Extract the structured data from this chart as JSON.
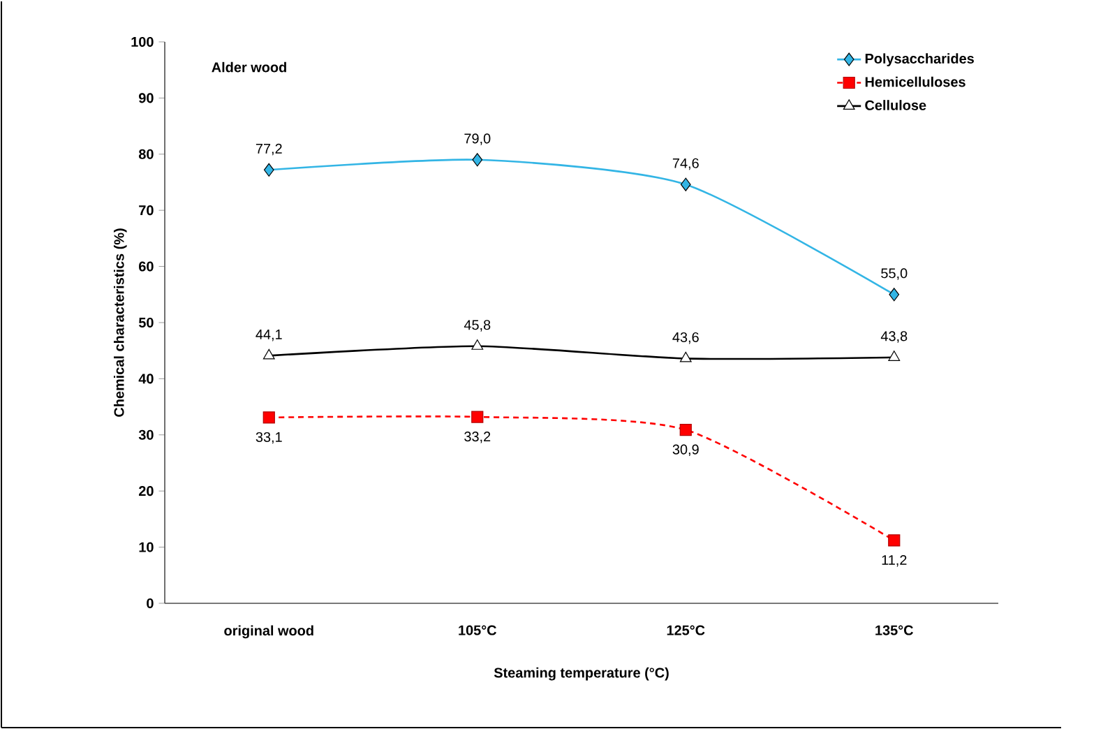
{
  "chart_data": {
    "type": "line",
    "xlabel": "Steaming temperature (°C)",
    "ylabel": "Chemical characteristics  (%)",
    "categories": [
      "original wood",
      "105°C",
      "125°C",
      "135°C"
    ],
    "ylim": [
      0,
      100
    ],
    "yticks": [
      0,
      10,
      20,
      30,
      40,
      50,
      60,
      70,
      80,
      90,
      100
    ],
    "grid": false,
    "legend": "top right",
    "annotations": [
      "Alder wood"
    ],
    "series": [
      {
        "name": "Polysaccharides",
        "color": "#33b5e5",
        "marker": "diamond",
        "line_style": "solid",
        "values": [
          77.2,
          79.0,
          74.6,
          55.0
        ],
        "value_labels": [
          "77,2",
          "79,0",
          "74,6",
          "55,0"
        ]
      },
      {
        "name": "Hemicelluloses",
        "color": "#ff0000",
        "marker": "square",
        "line_style": "dashed",
        "values": [
          33.1,
          33.2,
          30.9,
          11.2
        ],
        "value_labels": [
          "33,1",
          "33,2",
          "30,9",
          "11,2"
        ]
      },
      {
        "name": "Cellulose",
        "color": "#000000",
        "marker": "triangle",
        "line_style": "solid",
        "values": [
          44.1,
          45.8,
          43.6,
          43.8
        ],
        "value_labels": [
          "44,1",
          "45,8",
          "43,6",
          "43,8"
        ]
      }
    ]
  }
}
